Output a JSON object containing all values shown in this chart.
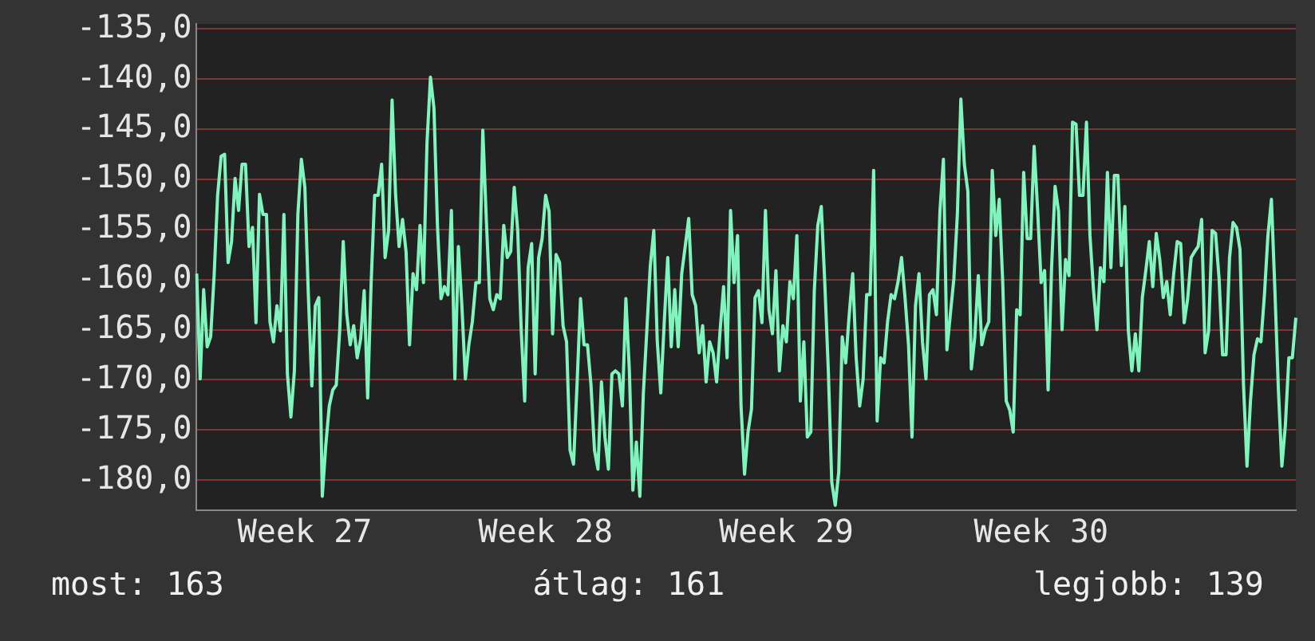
{
  "chart_data": {
    "type": "line",
    "categories": [
      null,
      null,
      null,
      null,
      null,
      null,
      null,
      null,
      null,
      null,
      null,
      null,
      null,
      null,
      null,
      null,
      null,
      null,
      null,
      null,
      null,
      null,
      null,
      null,
      null,
      null,
      null,
      null,
      null,
      null,
      null,
      "Week 27",
      null,
      null,
      null,
      null,
      null,
      null,
      null,
      null,
      null,
      null,
      null,
      null,
      null,
      null,
      null,
      null,
      null,
      null,
      null,
      null,
      null,
      null,
      null,
      null,
      null,
      null,
      null,
      null,
      null,
      null,
      null,
      null,
      null,
      null,
      null,
      null,
      null,
      null,
      null,
      null,
      null,
      null,
      null,
      null,
      null,
      null,
      null,
      null,
      null,
      null,
      null,
      null,
      null,
      null,
      null,
      null,
      null,
      null,
      null,
      null,
      null,
      null,
      null,
      null,
      null,
      null,
      null,
      null,
      "Week 28",
      null,
      null,
      null,
      null,
      null,
      null,
      null,
      null,
      null,
      null,
      null,
      null,
      null,
      null,
      null,
      null,
      null,
      null,
      null,
      null,
      null,
      null,
      null,
      null,
      null,
      null,
      null,
      null,
      null,
      null,
      null,
      null,
      null,
      null,
      null,
      null,
      null,
      null,
      null,
      null,
      null,
      null,
      null,
      null,
      null,
      null,
      null,
      null,
      null,
      null,
      null,
      null,
      null,
      null,
      null,
      null,
      null,
      null,
      null,
      null,
      null,
      null,
      null,
      null,
      null,
      null,
      null,
      null,
      "Week 29",
      null,
      null,
      null,
      null,
      null,
      null,
      null,
      null,
      null,
      null,
      null,
      null,
      null,
      null,
      null,
      null,
      null,
      null,
      null,
      null,
      null,
      null,
      null,
      null,
      null,
      null,
      null,
      null,
      null,
      null,
      null,
      null,
      null,
      null,
      null,
      null,
      null,
      null,
      null,
      null,
      null,
      null,
      null,
      null,
      null,
      null,
      null,
      null,
      null,
      null,
      null,
      null,
      null,
      null,
      null,
      null,
      null,
      null,
      null,
      null,
      null,
      null,
      null,
      null,
      null,
      null,
      null,
      null,
      null,
      null,
      null,
      null,
      "Week 30",
      null,
      null,
      null,
      null,
      null,
      null,
      null,
      null,
      null,
      null,
      null,
      null,
      null,
      null,
      null,
      null,
      null,
      null,
      null,
      null,
      null,
      null,
      null,
      null,
      null,
      null,
      null,
      null,
      null,
      null,
      null,
      null,
      null,
      null,
      null,
      null,
      null,
      null,
      null,
      null,
      null,
      null,
      null,
      null,
      null,
      null,
      null,
      null,
      null,
      null,
      null,
      null,
      null,
      null,
      null,
      null,
      null,
      null,
      null,
      null,
      null,
      null,
      null,
      null,
      null,
      null,
      null,
      null,
      null,
      null,
      null,
      null,
      null
    ],
    "ylim": [
      -183,
      -134.5
    ],
    "yticks": [
      {
        "value": -135,
        "label": "-135,0"
      },
      {
        "value": -140,
        "label": "-140,0"
      },
      {
        "value": -145,
        "label": "-145,0"
      },
      {
        "value": -150,
        "label": "-150,0"
      },
      {
        "value": -155,
        "label": "-155,0"
      },
      {
        "value": -160,
        "label": "-160,0"
      },
      {
        "value": -165,
        "label": "-165,0"
      },
      {
        "value": -170,
        "label": "-170,0"
      },
      {
        "value": -175,
        "label": "-175,0"
      },
      {
        "value": -180,
        "label": "-180,0"
      }
    ],
    "grid": "y",
    "marker": "none",
    "line_style": "solid",
    "annotations": [
      "most: 163",
      "átlag: 161",
      "legjobb: 139"
    ],
    "series": [
      {
        "color": "#7ff5bd",
        "values": [
          -159.4,
          -169.9,
          -161.0,
          -166.7,
          -165.7,
          -159.6,
          -151.6,
          -147.7,
          -147.5,
          -158.3,
          -156.2,
          -149.9,
          -153.1,
          -148.5,
          -148.5,
          -156.7,
          -154.8,
          -164.3,
          -151.5,
          -153.5,
          -153.5,
          -164.2,
          -166.2,
          -162.6,
          -165.1,
          -153.5,
          -169.4,
          -173.7,
          -169.1,
          -153.5,
          -148.0,
          -150.8,
          -161.5,
          -170.6,
          -162.6,
          -161.8,
          -181.6,
          -176.5,
          -172.6,
          -171.0,
          -170.5,
          -165.0,
          -156.2,
          -163.4,
          -166.5,
          -164.6,
          -167.8,
          -165.9,
          -161.1,
          -171.8,
          -160.3,
          -151.6,
          -151.6,
          -148.5,
          -157.8,
          -155.1,
          -142.1,
          -151.5,
          -156.7,
          -154.0,
          -157.2,
          -166.5,
          -159.4,
          -161.0,
          -154.6,
          -160.3,
          -146.4,
          -139.8,
          -142.9,
          -154.6,
          -161.9,
          -160.7,
          -161.5,
          -153.1,
          -169.9,
          -156.7,
          -162.6,
          -169.9,
          -166.5,
          -164.2,
          -160.3,
          -160.3,
          -145.1,
          -154.0,
          -161.9,
          -163.0,
          -161.5,
          -161.9,
          -154.6,
          -157.8,
          -157.2,
          -150.8,
          -155.1,
          -165.0,
          -172.1,
          -158.8,
          -156.4,
          -169.4,
          -157.8,
          -155.9,
          -151.6,
          -153.2,
          -165.4,
          -157.5,
          -158.3,
          -164.6,
          -166.2,
          -177.0,
          -178.4,
          -170.5,
          -161.9,
          -166.5,
          -166.5,
          -170.5,
          -177.0,
          -178.9,
          -170.2,
          -175.7,
          -178.9,
          -169.4,
          -169.1,
          -169.4,
          -172.6,
          -161.9,
          -169.1,
          -181.0,
          -176.2,
          -181.6,
          -171.4,
          -165.1,
          -158.6,
          -155.1,
          -166.2,
          -171.3,
          -164.2,
          -157.8,
          -166.7,
          -161.0,
          -166.7,
          -159.4,
          -156.7,
          -153.9,
          -161.5,
          -162.6,
          -167.3,
          -164.6,
          -170.2,
          -166.2,
          -167.3,
          -170.2,
          -165.1,
          -160.7,
          -167.8,
          -153.1,
          -160.3,
          -155.6,
          -172.6,
          -179.4,
          -175.2,
          -172.9,
          -161.8,
          -161.1,
          -164.3,
          -153.1,
          -163.0,
          -165.4,
          -159.1,
          -169.1,
          -164.6,
          -166.2,
          -160.2,
          -161.9,
          -155.6,
          -172.1,
          -166.2,
          -175.7,
          -175.2,
          -161.1,
          -154.6,
          -152.7,
          -160.3,
          -168.9,
          -180.2,
          -182.5,
          -179.2,
          -165.7,
          -168.3,
          -163.5,
          -159.4,
          -167.8,
          -172.6,
          -169.9,
          -161.5,
          -161.5,
          -149.1,
          -174.1,
          -167.8,
          -168.3,
          -164.2,
          -161.5,
          -161.9,
          -160.2,
          -157.8,
          -161.8,
          -166.5,
          -175.7,
          -162.6,
          -159.4,
          -166.2,
          -169.9,
          -161.5,
          -161.0,
          -163.5,
          -153.2,
          -148.0,
          -167.0,
          -163.4,
          -159.9,
          -153.5,
          -142.0,
          -148.5,
          -151.2,
          -168.9,
          -165.7,
          -159.6,
          -166.5,
          -165.0,
          -164.2,
          -149.1,
          -155.6,
          -152.0,
          -160.3,
          -172.1,
          -173.0,
          -175.2,
          -163.0,
          -163.5,
          -149.3,
          -155.9,
          -155.9,
          -146.7,
          -153.1,
          -160.3,
          -159.1,
          -171.0,
          -158.8,
          -150.7,
          -153.2,
          -165.0,
          -158.0,
          -159.6,
          -144.3,
          -144.5,
          -151.6,
          -151.6,
          -144.3,
          -155.6,
          -161.0,
          -165.0,
          -158.8,
          -160.2,
          -149.3,
          -158.8,
          -149.6,
          -149.6,
          -158.6,
          -152.7,
          -165.1,
          -169.1,
          -165.4,
          -169.1,
          -161.8,
          -159.1,
          -156.2,
          -160.7,
          -155.4,
          -158.0,
          -161.8,
          -160.2,
          -163.5,
          -159.4,
          -156.2,
          -156.4,
          -164.3,
          -161.9,
          -157.8,
          -157.2,
          -156.7,
          -154.0,
          -167.3,
          -165.1,
          -155.1,
          -155.4,
          -159.9,
          -167.5,
          -167.5,
          -157.8,
          -154.3,
          -154.8,
          -157.0,
          -170.5,
          -178.6,
          -172.1,
          -167.5,
          -165.9,
          -166.2,
          -161.5,
          -155.6,
          -152.0,
          -161.1,
          -171.0,
          -178.6,
          -174.5,
          -167.8,
          -167.8,
          -163.8
        ]
      }
    ]
  }
}
